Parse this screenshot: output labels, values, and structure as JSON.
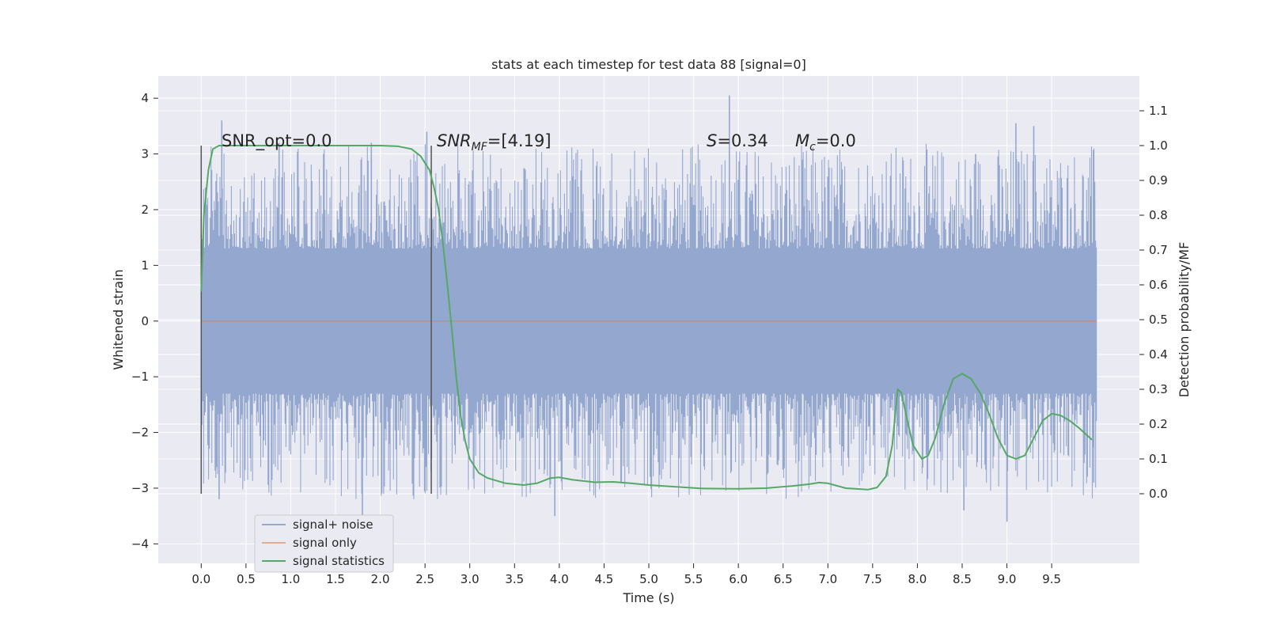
{
  "chart_data": {
    "type": "line",
    "title": "stats at each timestep for test data 88 [signal=0]",
    "xlabel": "Time (s)",
    "ylabel": "Whitened strain",
    "y2label": "Detection probability/MF",
    "xlim": [
      -0.48,
      10.48
    ],
    "ylim": [
      -4.35,
      4.4
    ],
    "y2lim": [
      -0.2,
      1.2
    ],
    "xticks": [
      "0.0",
      "0.5",
      "1.0",
      "1.5",
      "2.0",
      "2.5",
      "3.0",
      "3.5",
      "4.0",
      "4.5",
      "5.0",
      "5.5",
      "6.0",
      "6.5",
      "7.0",
      "7.5",
      "8.0",
      "8.5",
      "9.0",
      "9.5"
    ],
    "yticks": [
      "−4",
      "−3",
      "−2",
      "−1",
      "0",
      "1",
      "2",
      "3",
      "4"
    ],
    "y2ticks": [
      "0.0",
      "0.1",
      "0.2",
      "0.3",
      "0.4",
      "0.5",
      "0.6",
      "0.7",
      "0.8",
      "0.9",
      "1.0",
      "1.1"
    ],
    "grid": true,
    "legend_position": "lower-left",
    "annotations": {
      "snr_opt": "SNR_opt=0.0",
      "snr_mf_prefix": "SNR",
      "snr_mf_sub": "MF",
      "snr_mf_value": "=[4.19]",
      "s_label": "S",
      "s_value": "=0.34",
      "mc_label": "M",
      "mc_sub": "c",
      "mc_value": "=0.0"
    },
    "vlines": [
      0.0,
      2.57
    ],
    "colors": {
      "noise": "#94a7cf",
      "signal_only": "#dd8452",
      "statistics": "#55a868",
      "plot_bg": "#eaeaf2",
      "grid": "#ffffff"
    },
    "series": [
      {
        "name": "signal+ noise",
        "kind": "noise",
        "x_range": [
          0.0,
          10.0
        ],
        "core_amplitude": 1.3,
        "peaks_top": [
          [
            0.23,
            3.6
          ],
          [
            0.87,
            3.2
          ],
          [
            1.9,
            3.2
          ],
          [
            2.52,
            3.4
          ],
          [
            5.9,
            4.05
          ],
          [
            8.65,
            3.0
          ],
          [
            9.1,
            3.55
          ],
          [
            9.3,
            3.5
          ],
          [
            9.98,
            2.5
          ]
        ],
        "peaks_bottom": [
          [
            0.2,
            -3.2
          ],
          [
            1.8,
            -3.6
          ],
          [
            3.95,
            -3.5
          ],
          [
            8.52,
            -3.4
          ],
          [
            9.0,
            -3.6
          ],
          [
            9.97,
            -2.9
          ]
        ]
      },
      {
        "name": "signal only",
        "kind": "flat",
        "x": [
          0.0,
          10.0
        ],
        "y": [
          0.0,
          0.0
        ]
      },
      {
        "name": "signal statistics",
        "kind": "line",
        "axis": "right",
        "x": [
          0.0,
          0.03,
          0.08,
          0.13,
          0.2,
          0.3,
          0.5,
          1.0,
          1.5,
          2.0,
          2.2,
          2.35,
          2.45,
          2.55,
          2.6,
          2.65,
          2.7,
          2.75,
          2.8,
          2.85,
          2.9,
          2.95,
          3.0,
          3.1,
          3.2,
          3.4,
          3.6,
          3.75,
          3.9,
          4.0,
          4.15,
          4.4,
          4.6,
          4.8,
          5.0,
          5.3,
          5.6,
          6.0,
          6.3,
          6.6,
          6.8,
          6.9,
          7.0,
          7.2,
          7.45,
          7.55,
          7.65,
          7.72,
          7.78,
          7.82,
          7.88,
          7.95,
          8.05,
          8.12,
          8.2,
          8.3,
          8.4,
          8.5,
          8.6,
          8.7,
          8.8,
          8.9,
          9.0,
          9.1,
          9.2,
          9.3,
          9.4,
          9.5,
          9.6,
          9.7,
          9.8,
          9.95
        ],
        "y": [
          0.58,
          0.8,
          0.93,
          0.99,
          1.0,
          1.0,
          1.0,
          1.0,
          1.0,
          1.0,
          0.998,
          0.99,
          0.97,
          0.93,
          0.88,
          0.82,
          0.72,
          0.6,
          0.47,
          0.33,
          0.22,
          0.15,
          0.1,
          0.06,
          0.045,
          0.03,
          0.025,
          0.03,
          0.045,
          0.047,
          0.04,
          0.033,
          0.034,
          0.03,
          0.025,
          0.02,
          0.015,
          0.014,
          0.016,
          0.022,
          0.028,
          0.032,
          0.03,
          0.016,
          0.012,
          0.018,
          0.05,
          0.14,
          0.3,
          0.29,
          0.22,
          0.14,
          0.1,
          0.11,
          0.16,
          0.26,
          0.33,
          0.345,
          0.33,
          0.29,
          0.23,
          0.16,
          0.11,
          0.1,
          0.11,
          0.16,
          0.21,
          0.23,
          0.225,
          0.21,
          0.19,
          0.155
        ]
      }
    ]
  }
}
